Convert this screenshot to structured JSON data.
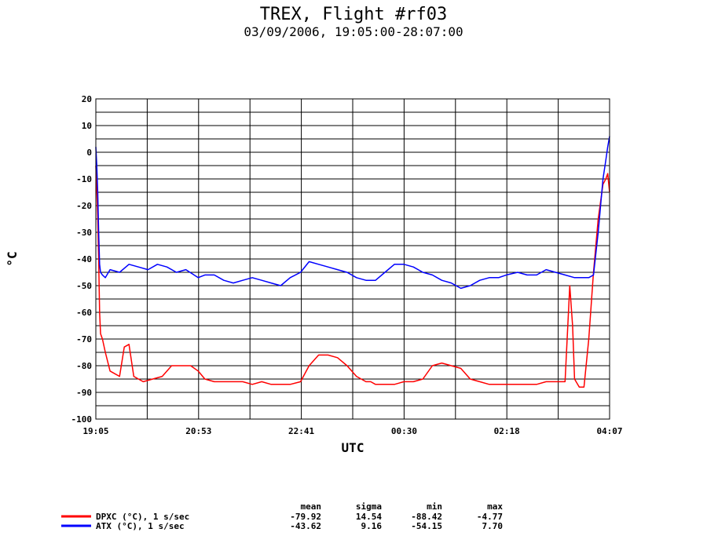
{
  "header": {
    "title": "TREX, Flight #rf03",
    "subtitle": "03/09/2006, 19:05:00-28:07:00"
  },
  "chart_data": {
    "type": "line",
    "title": "TREX, Flight #rf03",
    "subtitle": "03/09/2006, 19:05:00-28:07:00",
    "xlabel": "UTC",
    "ylabel": "°C",
    "x_ticks": [
      "19:05",
      "20:53",
      "22:41",
      "00:30",
      "02:18",
      "04:07"
    ],
    "xlim": [
      "19:05",
      "04:07"
    ],
    "y_ticks": [
      20,
      10,
      0,
      -10,
      -20,
      -30,
      -40,
      -50,
      -60,
      -70,
      -80,
      -90,
      -100
    ],
    "ylim": [
      -100,
      20
    ],
    "grid": true,
    "legend_position": "bottom-left",
    "series": [
      {
        "name": "DPXC (°C), 1 s/sec",
        "color": "#ff0000",
        "x": [
          "19:05",
          "19:06",
          "19:07",
          "19:08",
          "19:09",
          "19:10",
          "19:12",
          "19:15",
          "19:20",
          "19:25",
          "19:30",
          "19:35",
          "19:40",
          "19:45",
          "19:55",
          "20:05",
          "20:15",
          "20:25",
          "20:35",
          "20:45",
          "20:53",
          "21:00",
          "21:10",
          "21:20",
          "21:30",
          "21:40",
          "21:50",
          "22:00",
          "22:10",
          "22:20",
          "22:30",
          "22:41",
          "22:50",
          "23:00",
          "23:10",
          "23:20",
          "23:30",
          "23:40",
          "23:50",
          "23:55",
          "00:00",
          "00:10",
          "00:20",
          "00:30",
          "00:40",
          "00:50",
          "01:00",
          "01:10",
          "01:20",
          "01:30",
          "01:40",
          "01:50",
          "02:00",
          "02:10",
          "02:18",
          "02:30",
          "02:40",
          "02:50",
          "03:00",
          "03:10",
          "03:20",
          "03:25",
          "03:28",
          "03:30",
          "03:35",
          "03:40",
          "03:45",
          "03:50",
          "03:55",
          "04:00",
          "04:03",
          "04:05",
          "04:07"
        ],
        "y": [
          -5,
          -14,
          -25,
          -40,
          -60,
          -68,
          -70,
          -75,
          -82,
          -83,
          -84,
          -73,
          -72,
          -84,
          -86,
          -85,
          -84,
          -80,
          -80,
          -80,
          -82,
          -85,
          -86,
          -86,
          -86,
          -86,
          -87,
          -86,
          -87,
          -87,
          -87,
          -86,
          -80,
          -76,
          -76,
          -77,
          -80,
          -84,
          -86,
          -86,
          -87,
          -87,
          -87,
          -86,
          -86,
          -85,
          -80,
          -79,
          -80,
          -81,
          -85,
          -86,
          -87,
          -87,
          -87,
          -87,
          -87,
          -87,
          -86,
          -86,
          -86,
          -50,
          -65,
          -85,
          -88,
          -88,
          -70,
          -45,
          -25,
          -12,
          -10,
          -8,
          -15
        ]
      },
      {
        "name": "ATX (°C), 1 s/sec",
        "color": "#0000ff",
        "x": [
          "19:05",
          "19:06",
          "19:07",
          "19:08",
          "19:09",
          "19:10",
          "19:12",
          "19:15",
          "19:20",
          "19:30",
          "19:40",
          "19:50",
          "20:00",
          "20:10",
          "20:20",
          "20:30",
          "20:40",
          "20:53",
          "21:00",
          "21:10",
          "21:20",
          "21:30",
          "21:40",
          "21:50",
          "22:00",
          "22:10",
          "22:20",
          "22:30",
          "22:41",
          "22:50",
          "23:00",
          "23:10",
          "23:20",
          "23:30",
          "23:40",
          "23:50",
          "00:00",
          "00:10",
          "00:20",
          "00:30",
          "00:40",
          "00:50",
          "01:00",
          "01:10",
          "01:20",
          "01:30",
          "01:40",
          "01:50",
          "02:00",
          "02:10",
          "02:18",
          "02:30",
          "02:40",
          "02:50",
          "03:00",
          "03:10",
          "03:20",
          "03:30",
          "03:40",
          "03:45",
          "03:50",
          "03:55",
          "04:00",
          "04:03",
          "04:05",
          "04:07"
        ],
        "y": [
          2,
          -5,
          -15,
          -30,
          -42,
          -45,
          -46,
          -47,
          -44,
          -45,
          -42,
          -43,
          -44,
          -42,
          -43,
          -45,
          -44,
          -47,
          -46,
          -46,
          -48,
          -49,
          -48,
          -47,
          -48,
          -49,
          -50,
          -47,
          -45,
          -41,
          -42,
          -43,
          -44,
          -45,
          -47,
          -48,
          -48,
          -45,
          -42,
          -42,
          -43,
          -45,
          -46,
          -48,
          -49,
          -51,
          -50,
          -48,
          -47,
          -47,
          -46,
          -45,
          -46,
          -46,
          -44,
          -45,
          -46,
          -47,
          -47,
          -47,
          -46,
          -30,
          -10,
          -3,
          2,
          6
        ]
      }
    ]
  },
  "stats_table": {
    "headers": [
      "mean",
      "sigma",
      "min",
      "max"
    ],
    "rows": [
      {
        "label": "DPXC (°C), 1 s/sec",
        "color": "#ff0000",
        "mean": "-79.92",
        "sigma": "14.54",
        "min": "-88.42",
        "max": "-4.77"
      },
      {
        "label": "ATX (°C), 1 s/sec",
        "color": "#0000ff",
        "mean": "-43.62",
        "sigma": "9.16",
        "min": "-54.15",
        "max": "7.70"
      }
    ]
  }
}
